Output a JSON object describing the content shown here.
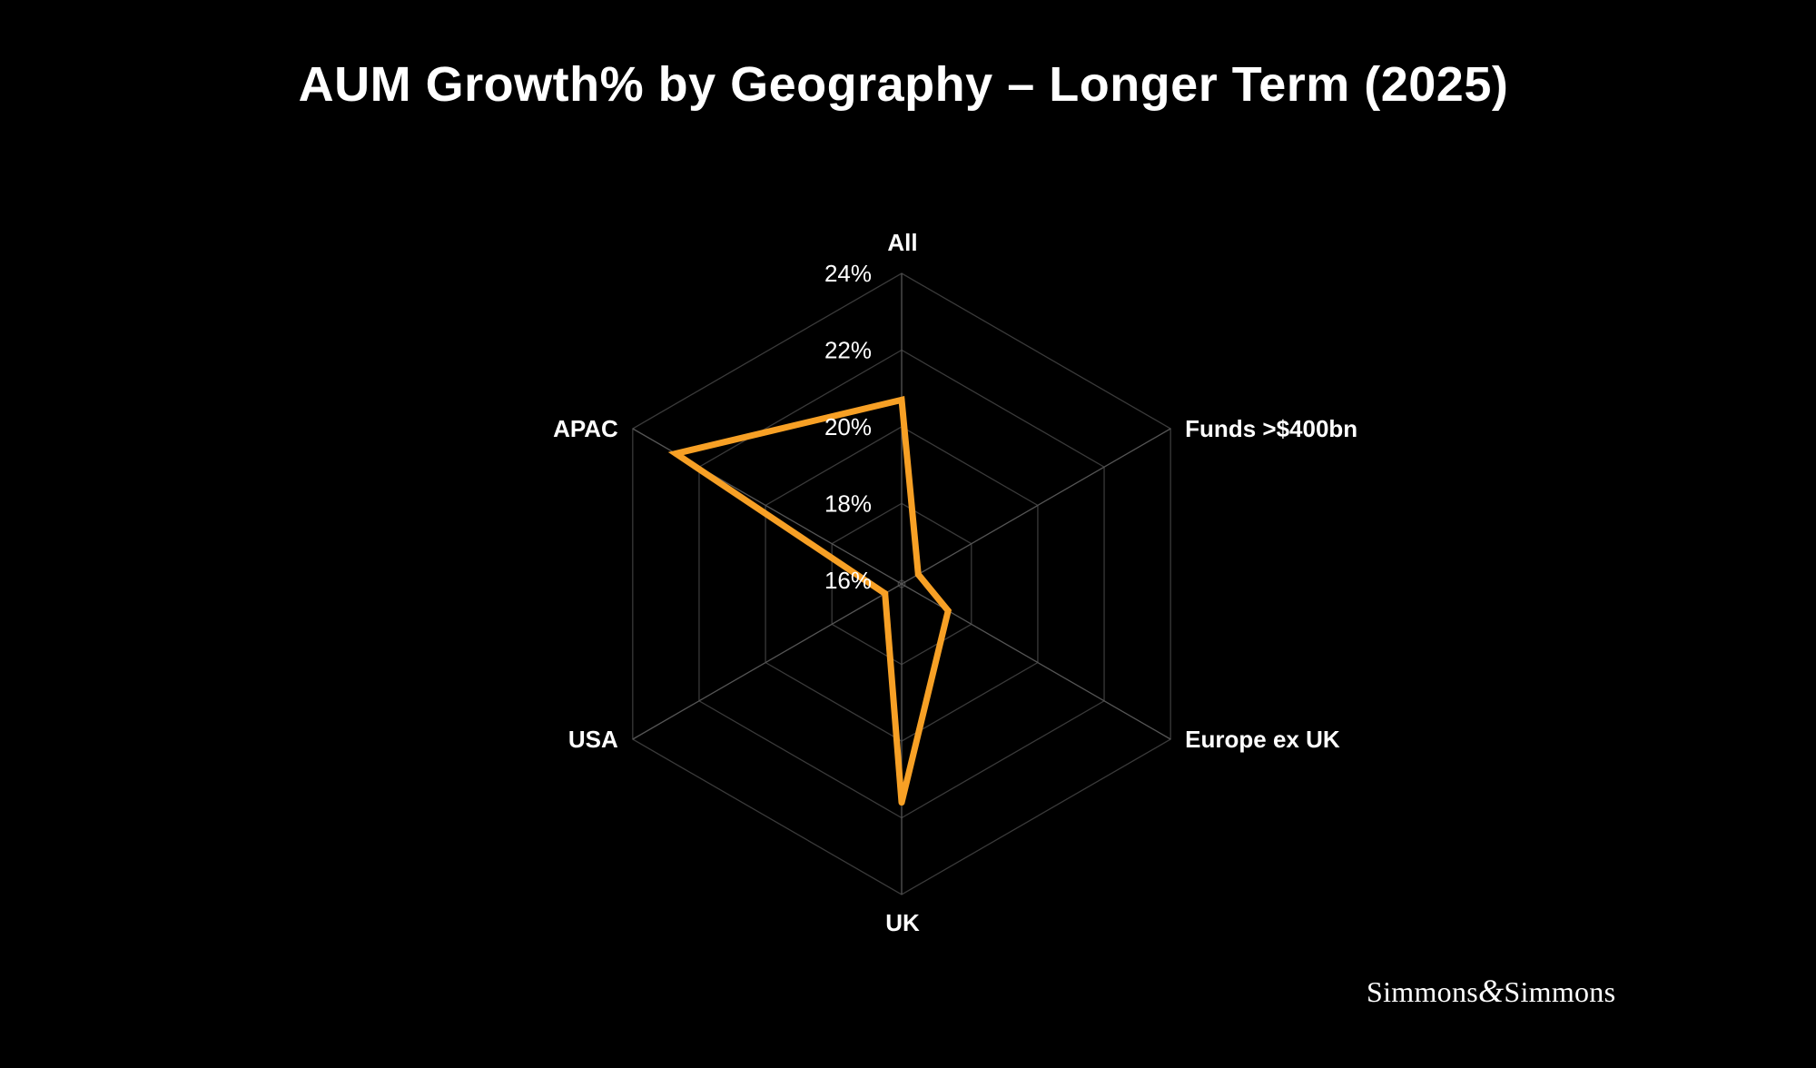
{
  "chart_data": {
    "type": "radar",
    "title": "AUM Growth% by Geography – Longer Term (2025)",
    "categories": [
      "All",
      "Funds >$400bn",
      "Europe ex UK",
      "UK",
      "USA",
      "APAC"
    ],
    "series": [
      {
        "values": [
          20.7,
          16.4,
          17.3,
          21.6,
          16.4,
          22.7
        ],
        "color": "#F7A025"
      }
    ],
    "rlim": [
      15.9,
      24
    ],
    "ticks": [
      16,
      18,
      20,
      22,
      24
    ],
    "tick_labels": [
      "16%",
      "18%",
      "20%",
      "22%",
      "24%"
    ],
    "grid": true,
    "legend": "none"
  },
  "brand": {
    "left": "Simmons",
    "amp": "&",
    "right": "Simmons"
  }
}
